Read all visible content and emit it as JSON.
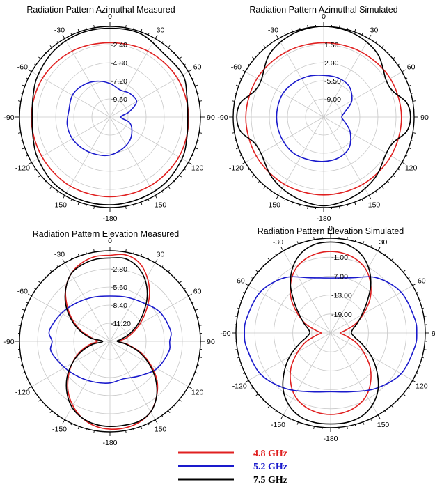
{
  "chart_data": [
    {
      "type": "line",
      "projection": "polar",
      "title": "Radiation Pattern Azimuthal Measured",
      "angle_ticks": [
        "0",
        "30",
        "60",
        "90",
        "120",
        "150",
        "-180",
        "-150",
        "-120",
        "-90",
        "-60",
        "-30"
      ],
      "radial_ticks": [
        "-2.40",
        "-4.80",
        "-7.20",
        "-9.60"
      ],
      "series": [
        {
          "color": "#e02020",
          "theta": [
            0,
            30,
            60,
            90,
            120,
            150,
            180,
            210,
            240,
            270,
            300,
            330
          ],
          "r": [
            0.82,
            0.84,
            0.86,
            0.87,
            0.88,
            0.88,
            0.88,
            0.88,
            0.87,
            0.87,
            0.86,
            0.84
          ]
        },
        {
          "color": "#1a1acc",
          "theta": [
            0,
            20,
            40,
            60,
            75,
            90,
            105,
            120,
            140,
            160,
            180,
            200,
            220,
            240,
            260,
            280,
            300,
            320,
            340
          ],
          "r": [
            0.37,
            0.32,
            0.34,
            0.34,
            0.22,
            0.12,
            0.22,
            0.28,
            0.34,
            0.38,
            0.42,
            0.44,
            0.46,
            0.48,
            0.48,
            0.46,
            0.48,
            0.46,
            0.42
          ]
        },
        {
          "color": "#000000",
          "theta": [
            0,
            20,
            40,
            60,
            75,
            90,
            105,
            120,
            140,
            160,
            180,
            200,
            220,
            240,
            255,
            270,
            285,
            300,
            320,
            340
          ],
          "r": [
            0.98,
            0.98,
            0.92,
            0.93,
            0.88,
            0.86,
            0.88,
            0.92,
            0.95,
            0.96,
            0.97,
            0.97,
            0.96,
            0.92,
            0.88,
            0.86,
            0.88,
            0.92,
            0.96,
            0.98
          ]
        }
      ]
    },
    {
      "type": "line",
      "projection": "polar",
      "title": "Radiation Pattern Azimuthal Simulated",
      "angle_ticks": [
        "0",
        "30",
        "60",
        "90",
        "120",
        "150",
        "-180",
        "-150",
        "-120",
        "-90",
        "-60",
        "-30"
      ],
      "radial_ticks": [
        "1.50",
        "2.00",
        "-5.50",
        "-9.00"
      ],
      "series": [
        {
          "color": "#e02020",
          "theta": [
            0,
            30,
            60,
            90,
            120,
            150,
            180,
            210,
            240,
            270,
            300,
            330
          ],
          "r": [
            0.82,
            0.83,
            0.85,
            0.86,
            0.86,
            0.86,
            0.86,
            0.86,
            0.86,
            0.86,
            0.85,
            0.83
          ]
        },
        {
          "color": "#1a1acc",
          "theta": [
            0,
            20,
            40,
            60,
            75,
            90,
            105,
            120,
            140,
            160,
            180,
            200,
            220,
            240,
            260,
            280,
            300,
            320,
            340
          ],
          "r": [
            0.46,
            0.46,
            0.44,
            0.36,
            0.25,
            0.2,
            0.25,
            0.34,
            0.44,
            0.48,
            0.49,
            0.5,
            0.52,
            0.52,
            0.52,
            0.52,
            0.52,
            0.5,
            0.48
          ]
        },
        {
          "color": "#000000",
          "theta": [
            0,
            20,
            40,
            60,
            70,
            80,
            90,
            100,
            110,
            120,
            140,
            160,
            180,
            200,
            220,
            240,
            250,
            260,
            270,
            280,
            290,
            300,
            320,
            340
          ],
          "r": [
            1.0,
            0.98,
            0.92,
            0.8,
            0.82,
            0.93,
            0.96,
            0.93,
            0.82,
            0.8,
            0.88,
            0.94,
            0.98,
            0.94,
            0.88,
            0.8,
            0.82,
            0.93,
            0.96,
            0.93,
            0.82,
            0.8,
            0.92,
            0.98
          ]
        }
      ]
    },
    {
      "type": "line",
      "projection": "polar",
      "title": "Radiation Pattern Elevation Measured",
      "angle_ticks": [
        "0",
        "30",
        "60",
        "90",
        "120",
        "150",
        "-180",
        "-150",
        "-120",
        "-90",
        "-60",
        "-30"
      ],
      "radial_ticks": [
        "-2.80",
        "-5.60",
        "-8.40",
        "-11.20"
      ],
      "series": [
        {
          "color": "#e02020",
          "theta": [
            0,
            10,
            20,
            30,
            40,
            50,
            60,
            70,
            80,
            90,
            100,
            110,
            120,
            130,
            140,
            150,
            160,
            170,
            180,
            190,
            200,
            210,
            220,
            230,
            240,
            250,
            260,
            270,
            280,
            290,
            300,
            310,
            320,
            330,
            340,
            350
          ],
          "r": [
            0.95,
            0.97,
            0.93,
            0.82,
            0.68,
            0.52,
            0.38,
            0.26,
            0.17,
            0.1,
            0.2,
            0.36,
            0.52,
            0.68,
            0.8,
            0.9,
            0.95,
            0.97,
            0.97,
            0.95,
            0.9,
            0.82,
            0.72,
            0.6,
            0.48,
            0.36,
            0.24,
            0.14,
            0.2,
            0.34,
            0.48,
            0.62,
            0.76,
            0.86,
            0.92,
            0.95
          ]
        },
        {
          "color": "#1a1acc",
          "theta": [
            0,
            20,
            40,
            60,
            80,
            90,
            100,
            120,
            140,
            160,
            180,
            200,
            220,
            240,
            260,
            270,
            280,
            300,
            320,
            340
          ],
          "r": [
            0.5,
            0.52,
            0.56,
            0.64,
            0.68,
            0.66,
            0.66,
            0.6,
            0.5,
            0.44,
            0.46,
            0.48,
            0.52,
            0.58,
            0.66,
            0.64,
            0.68,
            0.62,
            0.56,
            0.52
          ]
        },
        {
          "color": "#000000",
          "theta": [
            0,
            10,
            20,
            30,
            40,
            50,
            60,
            70,
            80,
            90,
            100,
            110,
            120,
            130,
            140,
            150,
            160,
            170,
            180,
            190,
            200,
            210,
            220,
            230,
            240,
            250,
            260,
            270,
            280,
            290,
            300,
            310,
            320,
            330,
            340,
            350
          ],
          "r": [
            0.92,
            0.93,
            0.88,
            0.78,
            0.64,
            0.48,
            0.34,
            0.22,
            0.12,
            0.08,
            0.18,
            0.34,
            0.5,
            0.66,
            0.8,
            0.9,
            0.94,
            0.94,
            0.94,
            0.93,
            0.9,
            0.84,
            0.74,
            0.62,
            0.48,
            0.34,
            0.2,
            0.08,
            0.22,
            0.36,
            0.5,
            0.64,
            0.76,
            0.86,
            0.9,
            0.92
          ]
        }
      ]
    },
    {
      "type": "line",
      "projection": "polar",
      "title": "Radiation Pattern Elevation Simulated",
      "angle_ticks": [
        "0",
        "30",
        "60",
        "90",
        "120",
        "150",
        "-180",
        "-150",
        "-120",
        "-90",
        "-60",
        "-30"
      ],
      "radial_ticks": [
        "-1.00",
        "-7.00",
        "-13.00",
        "-19.00"
      ],
      "series": [
        {
          "color": "#e02020",
          "theta": [
            0,
            10,
            20,
            30,
            40,
            50,
            60,
            70,
            80,
            90,
            100,
            110,
            120,
            130,
            140,
            150,
            160,
            170,
            180,
            190,
            200,
            210,
            220,
            230,
            240,
            250,
            260,
            270,
            280,
            290,
            300,
            310,
            320,
            330,
            340,
            350
          ],
          "r": [
            0.86,
            0.85,
            0.82,
            0.76,
            0.66,
            0.54,
            0.4,
            0.28,
            0.16,
            0.1,
            0.16,
            0.28,
            0.4,
            0.54,
            0.66,
            0.76,
            0.82,
            0.85,
            0.86,
            0.85,
            0.82,
            0.76,
            0.66,
            0.54,
            0.4,
            0.28,
            0.16,
            0.1,
            0.16,
            0.28,
            0.4,
            0.54,
            0.66,
            0.76,
            0.82,
            0.85
          ]
        },
        {
          "color": "#1a1acc",
          "theta": [
            0,
            20,
            40,
            60,
            80,
            90,
            100,
            120,
            140,
            160,
            180,
            200,
            220,
            240,
            260,
            270,
            280,
            300,
            320,
            340
          ],
          "r": [
            0.58,
            0.62,
            0.76,
            0.86,
            0.9,
            0.91,
            0.9,
            0.86,
            0.76,
            0.66,
            0.62,
            0.66,
            0.76,
            0.86,
            0.9,
            0.91,
            0.9,
            0.86,
            0.76,
            0.62
          ]
        },
        {
          "color": "#000000",
          "theta": [
            0,
            10,
            20,
            30,
            40,
            50,
            60,
            70,
            80,
            90,
            100,
            110,
            120,
            130,
            140,
            150,
            160,
            170,
            180,
            190,
            200,
            210,
            220,
            230,
            240,
            250,
            260,
            270,
            280,
            290,
            300,
            310,
            320,
            330,
            340,
            350
          ],
          "r": [
            0.96,
            0.95,
            0.9,
            0.8,
            0.66,
            0.5,
            0.38,
            0.3,
            0.24,
            0.22,
            0.26,
            0.36,
            0.5,
            0.64,
            0.78,
            0.88,
            0.94,
            0.96,
            0.96,
            0.96,
            0.94,
            0.88,
            0.78,
            0.64,
            0.5,
            0.36,
            0.26,
            0.22,
            0.24,
            0.3,
            0.38,
            0.5,
            0.66,
            0.8,
            0.9,
            0.95
          ]
        }
      ]
    }
  ],
  "legend": [
    {
      "label": "4.8 GHz",
      "color": "#e02020"
    },
    {
      "label": "5.2 GHz",
      "color": "#1a1acc"
    },
    {
      "label": "7.5 GHz",
      "color": "#000000"
    }
  ]
}
